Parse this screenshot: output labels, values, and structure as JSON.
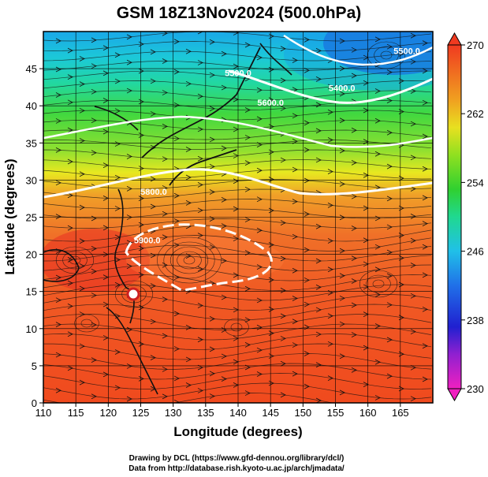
{
  "chart_data": {
    "type": "heatmap",
    "title": "GSM 18Z13Nov2024 (500.0hPa)",
    "xlabel": "Longitude (degrees)",
    "ylabel": "Latitude  (degrees)",
    "xlim": [
      110,
      170
    ],
    "ylim": [
      0,
      50
    ],
    "xticks": [
      110,
      115,
      120,
      125,
      130,
      135,
      140,
      145,
      150,
      155,
      160,
      165
    ],
    "yticks": [
      0,
      5,
      10,
      15,
      20,
      25,
      30,
      35,
      40,
      45
    ],
    "grid": true,
    "colorbar": {
      "label_values": [
        230,
        238,
        246,
        254,
        262,
        270
      ],
      "range": [
        230,
        270
      ],
      "colors": [
        "#e020b0",
        "#2020c8",
        "#20a0e8",
        "#20d880",
        "#40d020",
        "#c0e020",
        "#f0a020",
        "#e83020"
      ]
    },
    "contour_labels": [
      {
        "text": "5400.0",
        "lon": 156,
        "lat": 42
      },
      {
        "text": "5500.0",
        "lon": 140,
        "lat": 44
      },
      {
        "text": "5600.0",
        "lon": 145,
        "lat": 40
      },
      {
        "text": "5800.0",
        "lon": 127,
        "lat": 28
      },
      {
        "text": "5900.0",
        "lon": 126,
        "lat": 21.5
      },
      {
        "text": "5500.0",
        "lon": 166,
        "lat": 47
      }
    ],
    "temperature_bands": [
      {
        "lat": 50,
        "value": 244
      },
      {
        "lat": 45,
        "value": 248
      },
      {
        "lat": 40,
        "value": 252
      },
      {
        "lat": 35,
        "value": 255
      },
      {
        "lat": 30,
        "value": 259
      },
      {
        "lat": 25,
        "value": 263
      },
      {
        "lat": 20,
        "value": 265
      },
      {
        "lat": 10,
        "value": 266
      },
      {
        "lat": 0,
        "value": 266
      }
    ]
  },
  "credits": {
    "line1": "Drawing by DCL (https://www.gfd-dennou.org/library/dcl/)",
    "line2": "Data from http://database.rish.kyoto-u.ac.jp/arch/jmadata/"
  }
}
